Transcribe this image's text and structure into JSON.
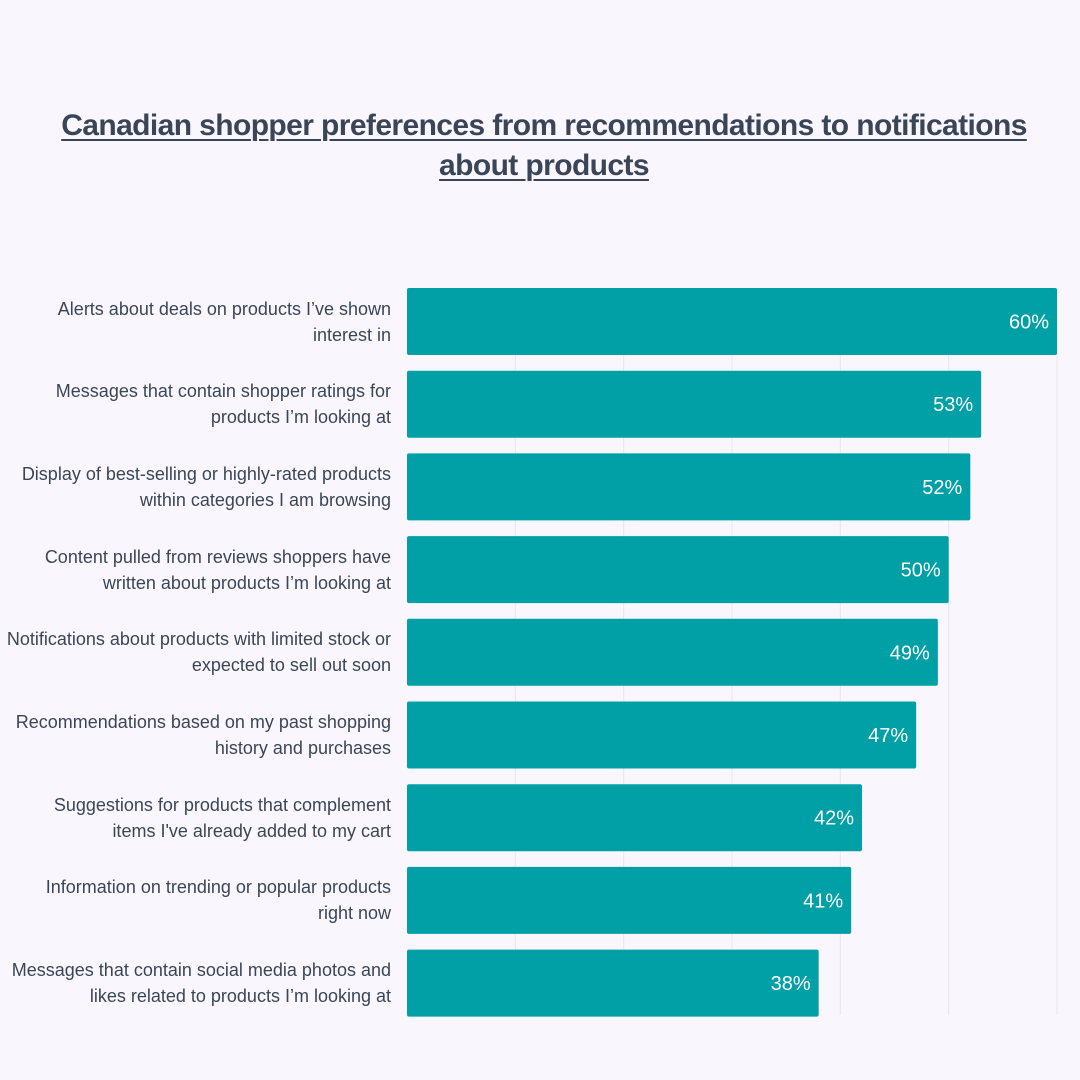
{
  "chart_data": {
    "type": "bar",
    "orientation": "horizontal",
    "title": "Canadian shopper preferences from recommendations to notifications about products",
    "categories": [
      "Alerts about deals on products I’ve shown interest in",
      "Messages that contain shopper ratings for products I’m looking at",
      "Display of best-selling or highly-rated products within categories I am browsing",
      "Content pulled from reviews shoppers have written about products I’m looking at",
      "Notifications about products with limited stock or expected to sell out soon",
      "Recommendations based on my past shopping history and purchases",
      "Suggestions for products that complement items I've already added to my cart",
      "Information on trending or popular products right now",
      "Messages that contain social media photos and likes related to products I’m looking at"
    ],
    "values": [
      60,
      53,
      52,
      50,
      49,
      47,
      42,
      41,
      38
    ],
    "value_labels": [
      "60%",
      "53%",
      "52%",
      "50%",
      "49%",
      "47%",
      "42%",
      "41%",
      "38%"
    ],
    "unit": "%",
    "xlim": [
      0,
      60
    ],
    "grid": true,
    "legend": "none",
    "colors": {
      "bar": "#00a0a6",
      "bar_label": "#ffffff",
      "text": "#3a4658",
      "grid": "#e8e5ee",
      "background": "#f9f7fd"
    }
  }
}
